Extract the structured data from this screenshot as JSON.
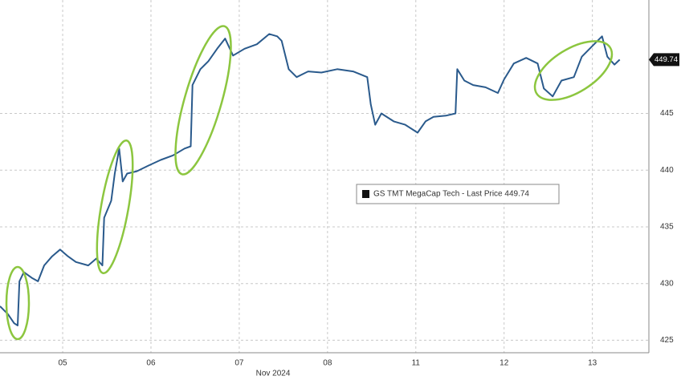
{
  "chart_data": {
    "type": "line",
    "x_label": "Nov 2024",
    "series": [
      {
        "name": "GS TMT MegaCap Tech - Last Price 449.74",
        "color": "#2a5a8c",
        "x": [
          -0.21,
          -0.12,
          -0.05,
          -0.01,
          0.01,
          0.06,
          0.15,
          0.22,
          0.29,
          0.38,
          0.47,
          0.56,
          0.65,
          0.79,
          0.88,
          0.95,
          0.97,
          1.05,
          1.09,
          1.14,
          1.18,
          1.23,
          1.34,
          1.47,
          1.61,
          1.75,
          1.88,
          1.95,
          1.97,
          2.06,
          2.15,
          2.25,
          2.34,
          2.43,
          2.56,
          2.7,
          2.84,
          2.93,
          2.98,
          3.06,
          3.15,
          3.28,
          3.43,
          3.61,
          3.79,
          3.95,
          3.99,
          4.04,
          4.11,
          4.25,
          4.38,
          4.52,
          4.61,
          4.7,
          4.84,
          4.95,
          4.97,
          5.05,
          5.15,
          5.29,
          5.43,
          5.5,
          5.61,
          5.75,
          5.88,
          5.95,
          6.05,
          6.15,
          6.29,
          6.38,
          6.52,
          6.61,
          6.67,
          6.75,
          6.81
        ],
        "values": [
          428.0,
          427.3,
          426.5,
          426.3,
          430.2,
          431.0,
          430.5,
          430.2,
          431.6,
          432.4,
          433.0,
          432.4,
          431.9,
          431.6,
          432.2,
          431.6,
          435.8,
          437.3,
          439.7,
          441.9,
          439.0,
          439.7,
          439.9,
          440.4,
          440.9,
          441.3,
          441.9,
          442.1,
          447.5,
          448.9,
          449.6,
          450.7,
          451.6,
          450.1,
          450.7,
          451.1,
          452.0,
          451.8,
          451.4,
          448.9,
          448.2,
          448.7,
          448.6,
          448.9,
          448.7,
          448.2,
          445.8,
          444.0,
          445.0,
          444.3,
          444.0,
          443.3,
          444.3,
          444.7,
          444.8,
          445.0,
          448.9,
          447.9,
          447.5,
          447.3,
          446.8,
          448.0,
          449.4,
          449.9,
          449.4,
          447.2,
          446.5,
          447.9,
          448.2,
          450.0,
          451.1,
          451.8,
          450.0,
          449.3,
          449.74
        ]
      }
    ],
    "last_price": {
      "value": 449.74,
      "label": "449.74"
    },
    "xlim": [
      -0.21,
      7.14
    ],
    "xticks": [
      {
        "value": 0.5,
        "label": "05"
      },
      {
        "value": 1.5,
        "label": "06"
      },
      {
        "value": 2.5,
        "label": "07"
      },
      {
        "value": 3.5,
        "label": "08"
      },
      {
        "value": 4.5,
        "label": "11"
      },
      {
        "value": 5.5,
        "label": "12"
      },
      {
        "value": 6.5,
        "label": "13"
      }
    ],
    "ylim": [
      423.9,
      455
    ],
    "yticks": [
      425,
      430,
      435,
      440,
      445
    ],
    "grid": true
  }
}
